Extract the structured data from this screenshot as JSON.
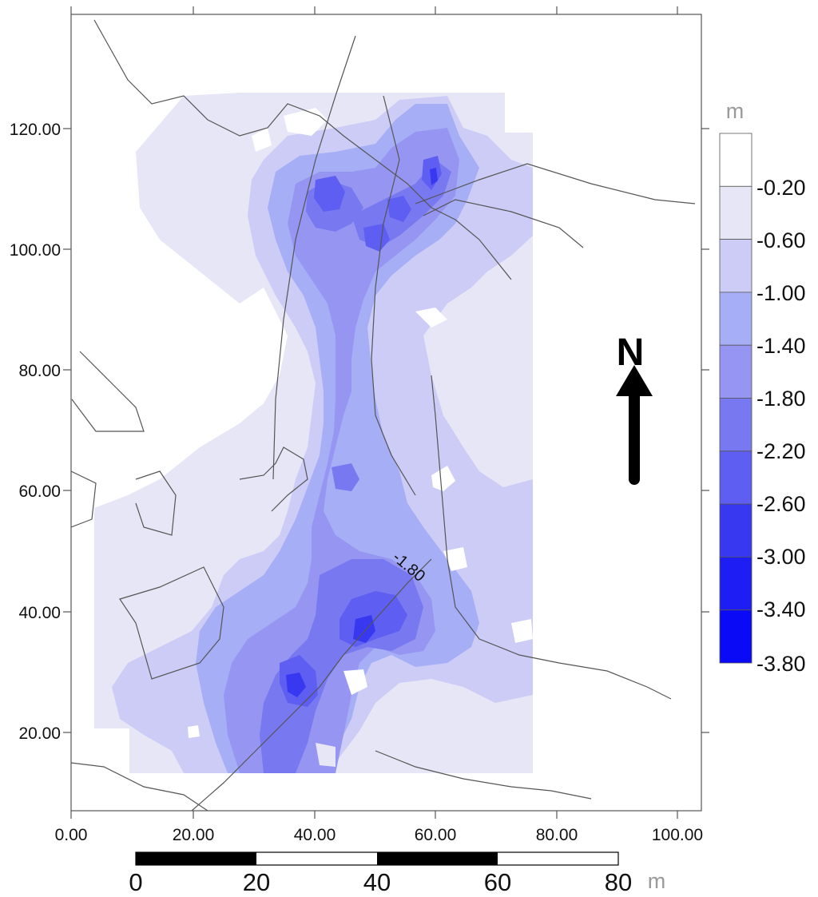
{
  "map": {
    "contour_label": "-1.80",
    "north_label": "N",
    "x_axis_ticks": [
      "0.00",
      "20.00",
      "40.00",
      "60.00",
      "80.00",
      "100.00"
    ],
    "y_axis_ticks": [
      "20.00",
      "40.00",
      "60.00",
      "80.00",
      "100.00",
      "120.00"
    ]
  },
  "legend": {
    "unit": "m",
    "labels": [
      "-0.20",
      "-0.60",
      "-1.00",
      "-1.40",
      "-1.80",
      "-2.20",
      "-2.60",
      "-3.00",
      "-3.40",
      "-3.80"
    ],
    "colors": [
      "#ffffff",
      "#e6e6f6",
      "#ccccf6",
      "#a6aef6",
      "#9696f2",
      "#7878f0",
      "#5e5ef2",
      "#3838f0",
      "#1e1ef4",
      "#0a0af6"
    ]
  },
  "scale_bar": {
    "labels": [
      "0",
      "20",
      "40",
      "60",
      "80"
    ],
    "unit": "m"
  }
}
